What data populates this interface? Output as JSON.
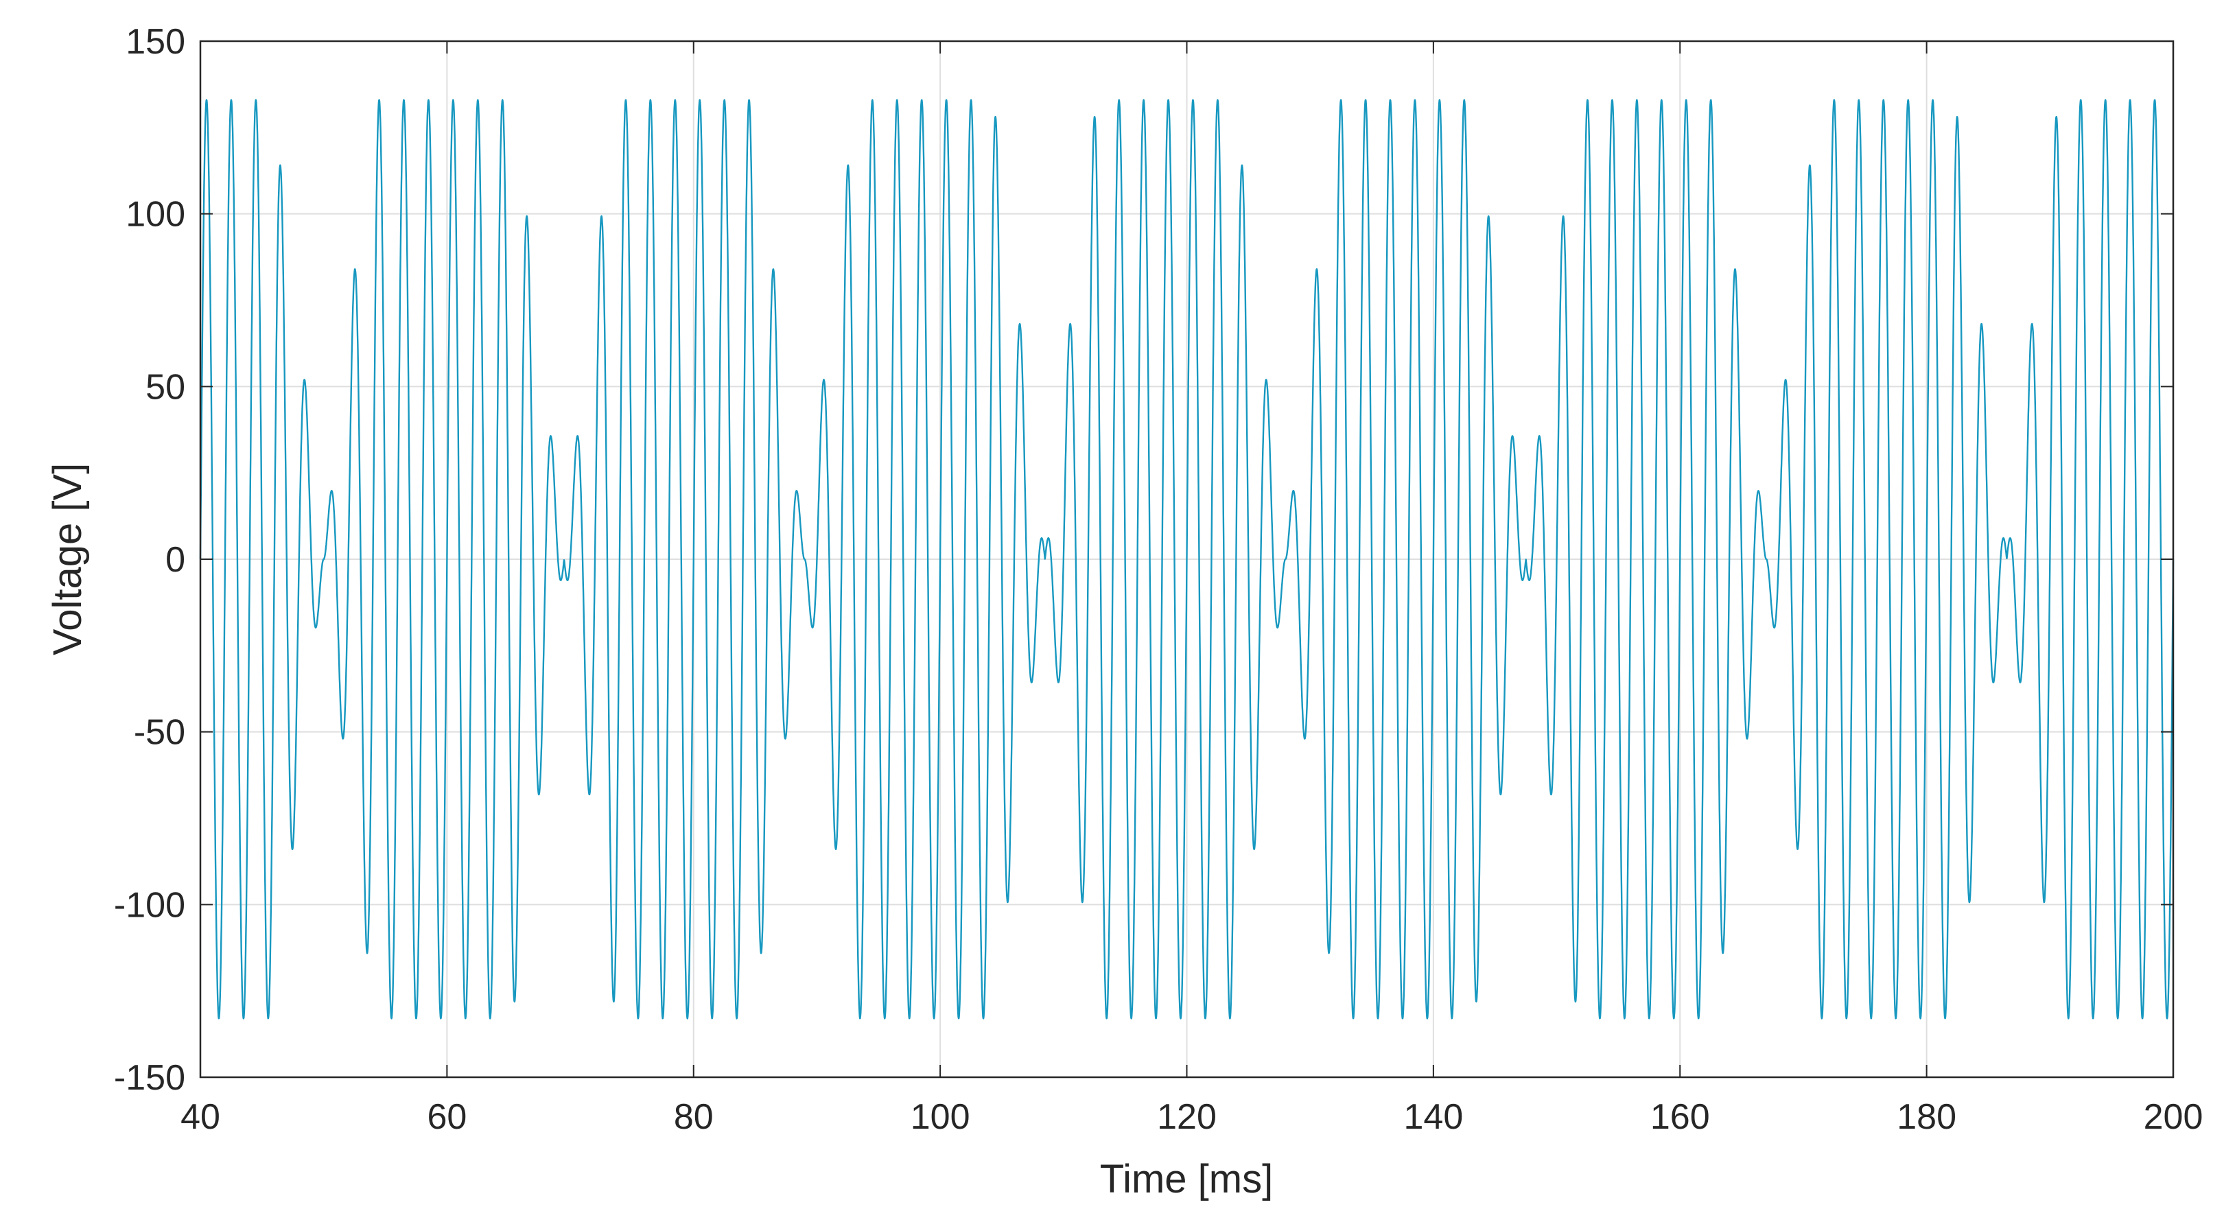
{
  "chart_data": {
    "type": "line",
    "title": "",
    "xlabel": "Time [ms]",
    "ylabel": "Voltage [V]",
    "xlim": [
      40,
      200
    ],
    "ylim": [
      -150,
      150
    ],
    "xticks": [
      40,
      60,
      80,
      100,
      120,
      140,
      160,
      180,
      200
    ],
    "yticks": [
      -150,
      -100,
      -50,
      0,
      50,
      100,
      150
    ],
    "xtick_labels": [
      "40",
      "60",
      "80",
      "100",
      "120",
      "140",
      "160",
      "180",
      "200"
    ],
    "ytick_labels": [
      "-150",
      "-100",
      "-50",
      "0",
      "50",
      "100",
      "150"
    ],
    "grid": true,
    "series": [
      {
        "color": "#0072BD",
        "line_color_rendered": "#1798c0",
        "signal": "amplitude-modulated oscillation",
        "carrier_period_ms": 2.0,
        "beat_period_ms": 19.5,
        "peak_amplitude": 133,
        "envelope_minimum_ms": [
          50.0,
          69.5,
          89.0,
          108.5,
          128.0,
          147.5,
          167.0,
          186.5
        ],
        "peaks": [
          {
            "x": 40.2,
            "y": 133
          },
          {
            "x": 42.5,
            "y": 133
          },
          {
            "x": 44.6,
            "y": 133
          },
          {
            "x": 46.6,
            "y": 132
          },
          {
            "x": 47.9,
            "y": -102
          },
          {
            "x": 48.8,
            "y": 62
          },
          {
            "x": 50.6,
            "y": 26
          },
          {
            "x": 51.1,
            "y": -62
          },
          {
            "x": 52.1,
            "y": 102
          },
          {
            "x": 54.9,
            "y": 133
          },
          {
            "x": 57.0,
            "y": 133
          },
          {
            "x": 59.0,
            "y": 133
          },
          {
            "x": 61.0,
            "y": 133
          },
          {
            "x": 63.0,
            "y": 133
          },
          {
            "x": 65.0,
            "y": 133
          },
          {
            "x": 67.6,
            "y": 102
          },
          {
            "x": 69.4,
            "y": -27
          },
          {
            "x": 70.5,
            "y": 26
          },
          {
            "x": 71.3,
            "y": 62
          },
          {
            "x": 73.4,
            "y": -102
          },
          {
            "x": 74.4,
            "y": 133
          },
          {
            "x": 76.4,
            "y": 133
          },
          {
            "x": 78.4,
            "y": 133
          },
          {
            "x": 80.4,
            "y": 133
          },
          {
            "x": 82.4,
            "y": 133
          },
          {
            "x": 84.4,
            "y": 133
          },
          {
            "x": 86.4,
            "y": 133
          },
          {
            "x": 88.6,
            "y": -102
          },
          {
            "x": 89.0,
            "y": 62
          },
          {
            "x": 90.6,
            "y": 26
          },
          {
            "x": 91.4,
            "y": -62
          },
          {
            "x": 92.2,
            "y": 102
          },
          {
            "x": 94.0,
            "y": 133
          },
          {
            "x": 96.0,
            "y": 133
          },
          {
            "x": 98.0,
            "y": 133
          },
          {
            "x": 100.0,
            "y": 133
          },
          {
            "x": 102.0,
            "y": 133
          },
          {
            "x": 104.0,
            "y": 133
          },
          {
            "x": 106.0,
            "y": 133
          },
          {
            "x": 107.4,
            "y": 102
          },
          {
            "x": 109.0,
            "y": -27
          },
          {
            "x": 109.7,
            "y": 26
          },
          {
            "x": 111.0,
            "y": 62
          },
          {
            "x": 112.8,
            "y": -102
          },
          {
            "x": 113.5,
            "y": 133
          },
          {
            "x": 115.5,
            "y": 133
          },
          {
            "x": 117.5,
            "y": 133
          },
          {
            "x": 119.5,
            "y": 133
          },
          {
            "x": 121.5,
            "y": 133
          },
          {
            "x": 123.5,
            "y": 133
          },
          {
            "x": 125.5,
            "y": 133
          },
          {
            "x": 128.0,
            "y": 62
          },
          {
            "x": 129.6,
            "y": 26
          },
          {
            "x": 131.2,
            "y": 102
          },
          {
            "x": 133.0,
            "y": 133
          },
          {
            "x": 135.0,
            "y": 133
          },
          {
            "x": 137.0,
            "y": 133
          },
          {
            "x": 139.0,
            "y": 133
          },
          {
            "x": 141.0,
            "y": 133
          },
          {
            "x": 143.0,
            "y": 133
          },
          {
            "x": 145.0,
            "y": 133
          },
          {
            "x": 146.9,
            "y": 102
          },
          {
            "x": 149.0,
            "y": 26
          },
          {
            "x": 150.6,
            "y": 62
          },
          {
            "x": 153.0,
            "y": 133
          },
          {
            "x": 155.0,
            "y": 133
          },
          {
            "x": 157.0,
            "y": 133
          },
          {
            "x": 159.0,
            "y": 133
          },
          {
            "x": 161.0,
            "y": 133
          },
          {
            "x": 163.0,
            "y": 133
          },
          {
            "x": 165.0,
            "y": 133
          },
          {
            "x": 167.5,
            "y": 62
          },
          {
            "x": 169.0,
            "y": 26
          },
          {
            "x": 170.6,
            "y": 102
          },
          {
            "x": 172.5,
            "y": 133
          },
          {
            "x": 174.5,
            "y": 133
          },
          {
            "x": 176.5,
            "y": 133
          },
          {
            "x": 178.5,
            "y": 133
          },
          {
            "x": 180.5,
            "y": 133
          },
          {
            "x": 182.5,
            "y": 133
          },
          {
            "x": 184.5,
            "y": 133
          },
          {
            "x": 186.4,
            "y": 102
          },
          {
            "x": 188.5,
            "y": 26
          },
          {
            "x": 190.2,
            "y": 62
          },
          {
            "x": 192.5,
            "y": 133
          },
          {
            "x": 194.5,
            "y": 133
          },
          {
            "x": 196.5,
            "y": 133
          },
          {
            "x": 198.5,
            "y": 133
          }
        ]
      }
    ]
  }
}
